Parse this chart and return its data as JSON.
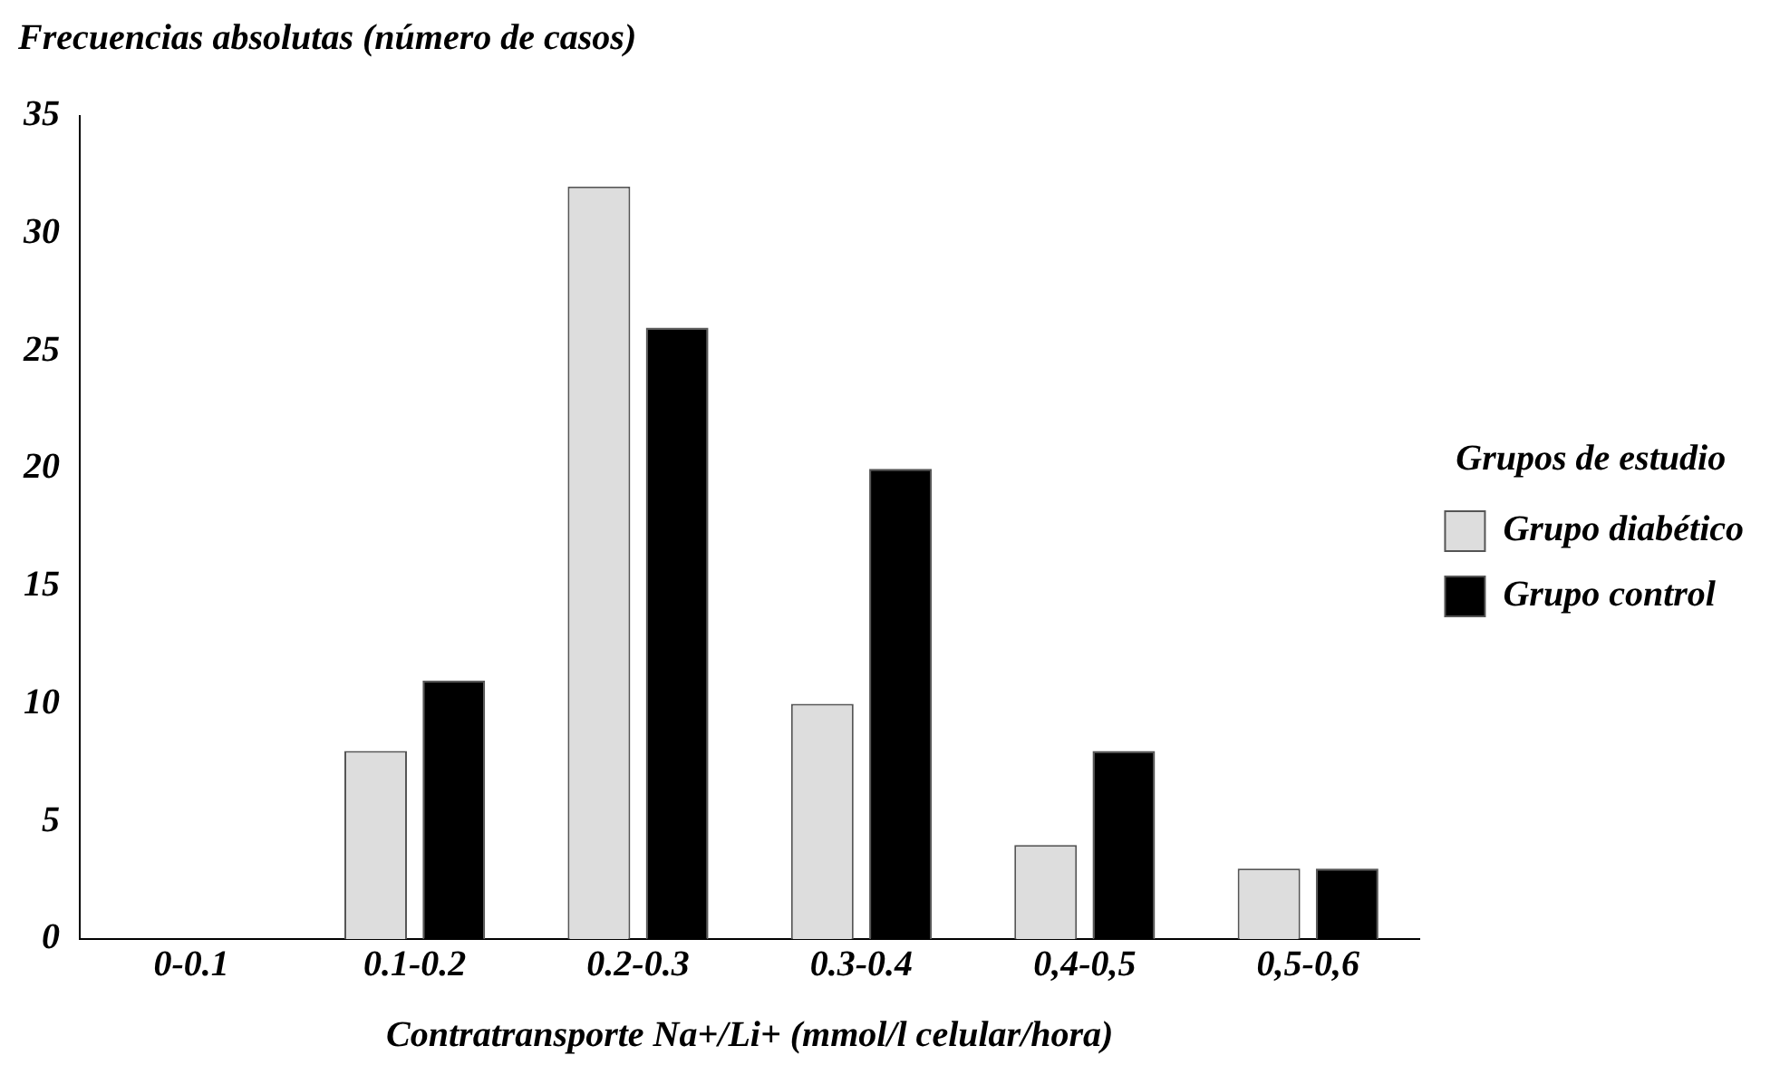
{
  "chart_data": {
    "type": "bar",
    "ylabel": "Frecuencias absolutas (número de casos)",
    "xlabel": "Contratransporte Na+/Li+ (mmol/l celular/hora)",
    "legend_title": "Grupos de estudio",
    "categories": [
      "0-0.1",
      "0.1-0.2",
      "0.2-0.3",
      "0.3-0.4",
      "0,4-0,5",
      "0,5-0,6"
    ],
    "series": [
      {
        "name": "Grupo diabético",
        "color": "#dddddd",
        "values": [
          0,
          8,
          32,
          10,
          4,
          3
        ]
      },
      {
        "name": "Grupo control",
        "color": "#000000",
        "values": [
          0,
          11,
          26,
          20,
          8,
          3
        ]
      }
    ],
    "ylim": [
      0,
      35
    ],
    "yticks": [
      0,
      5,
      10,
      15,
      20,
      25,
      30,
      35
    ],
    "grid": false,
    "legend": "right"
  }
}
